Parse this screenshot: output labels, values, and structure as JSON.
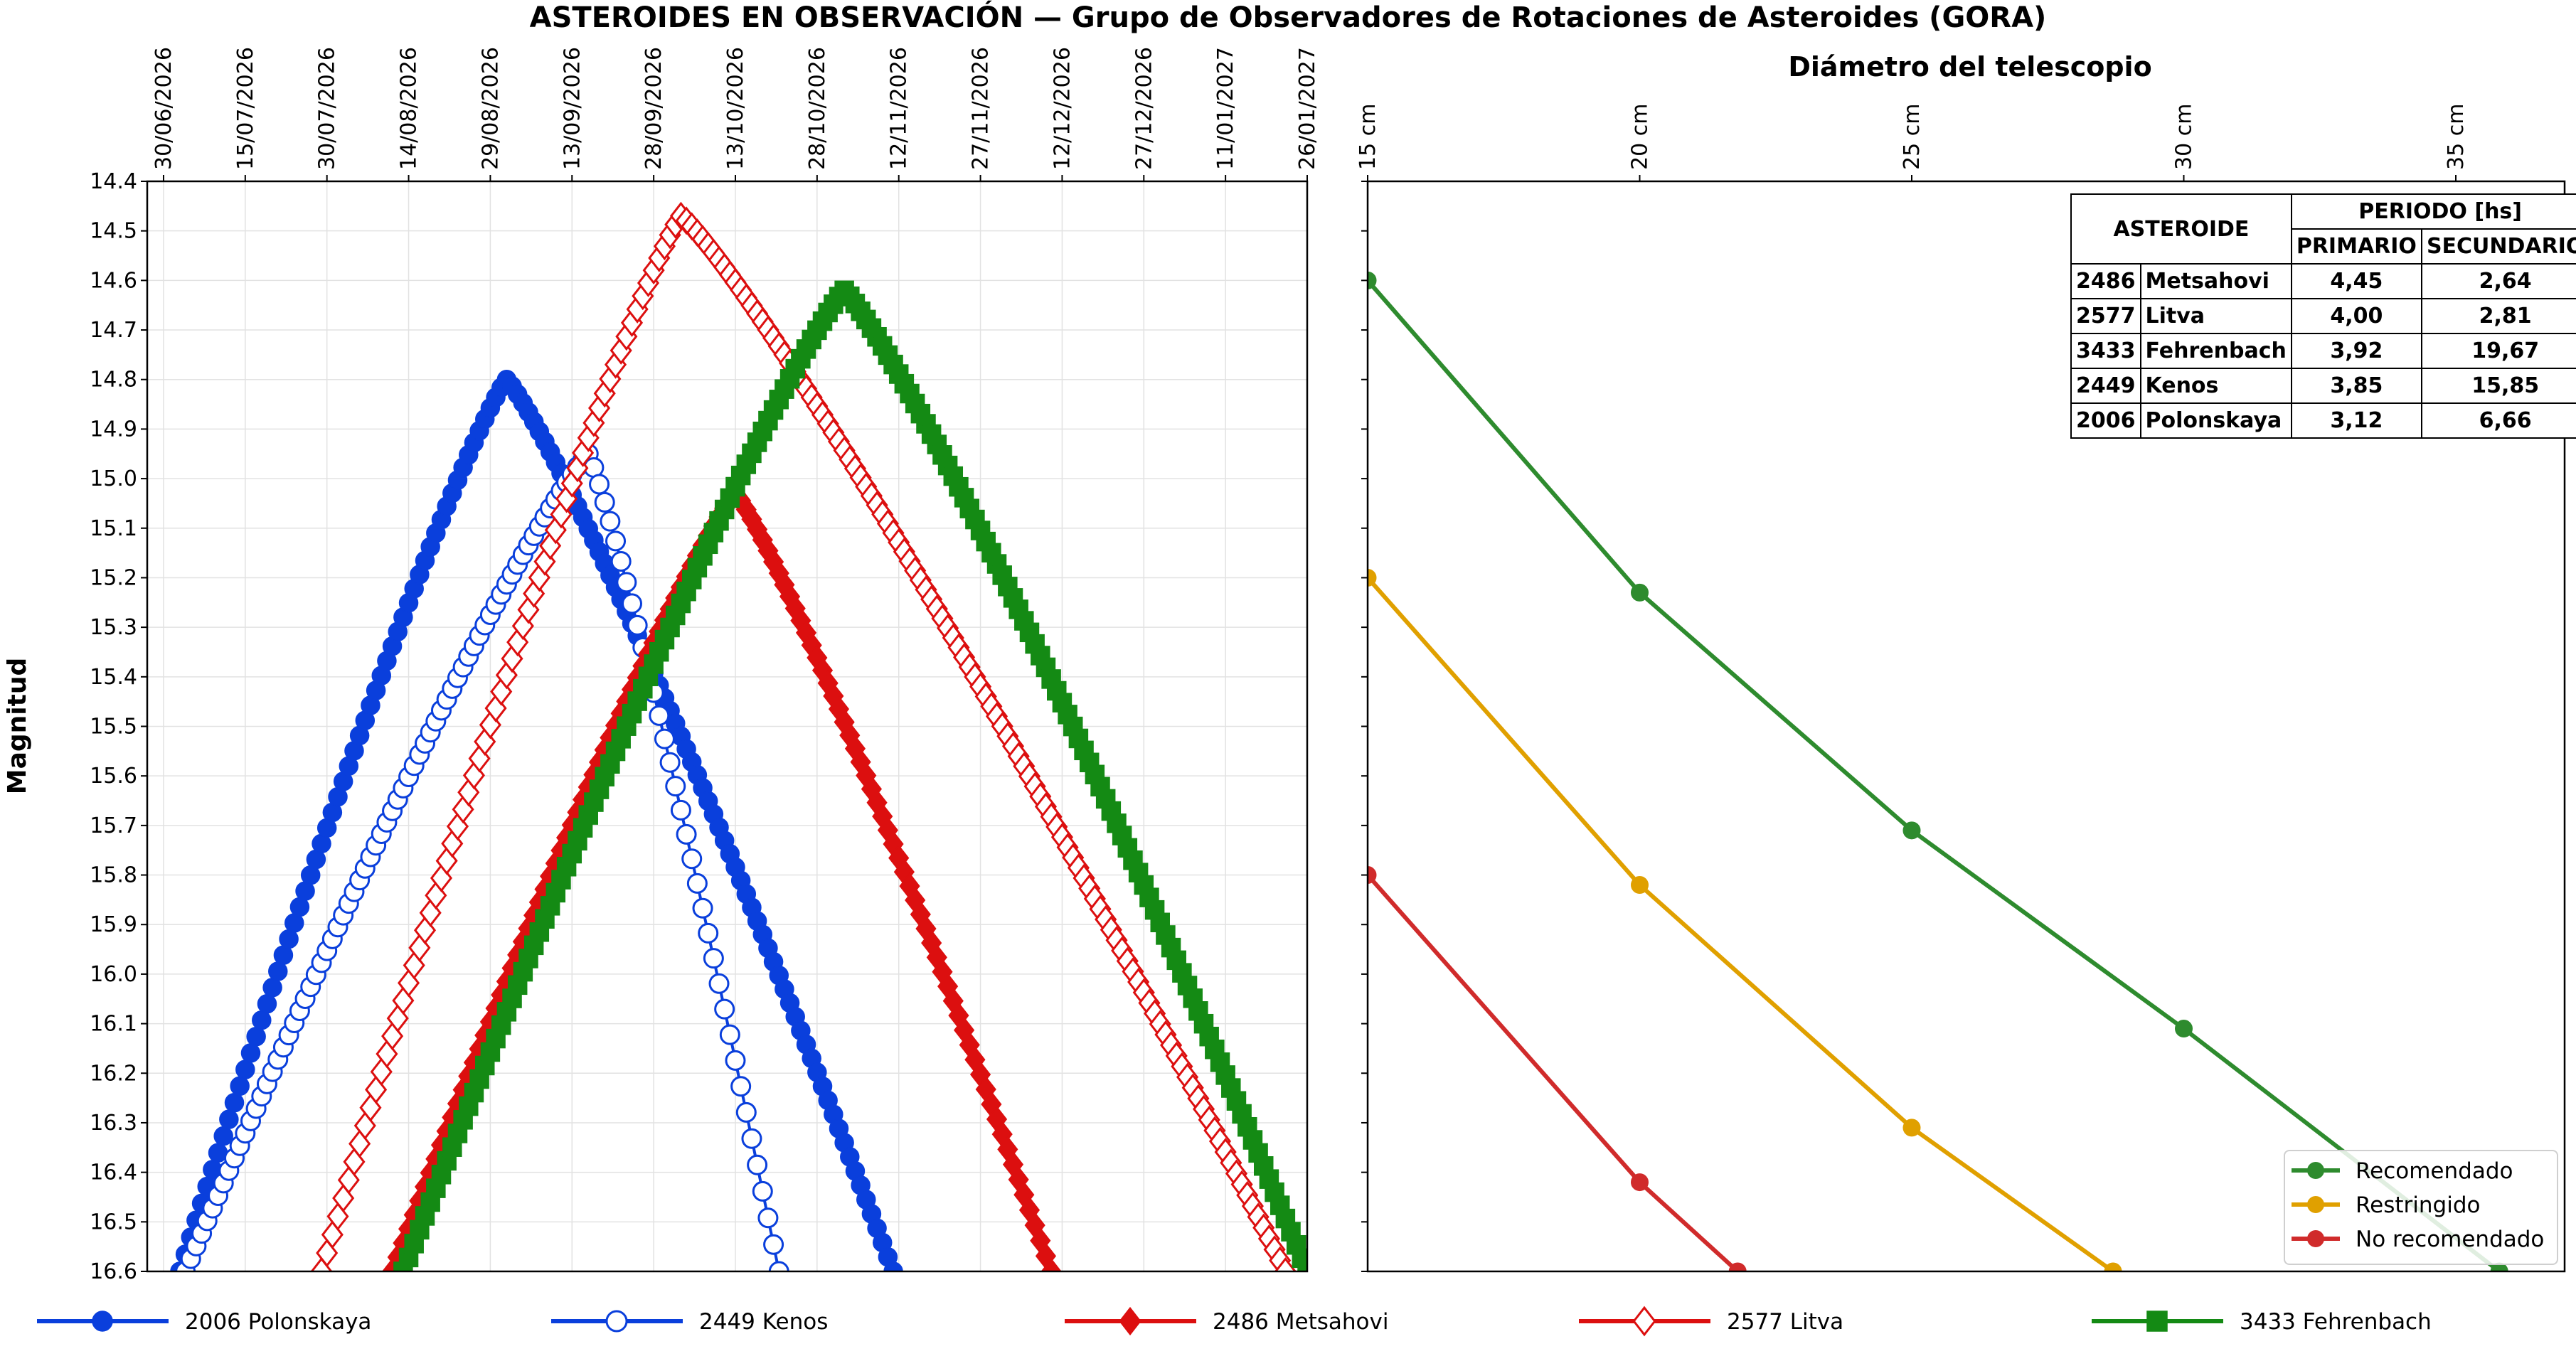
{
  "title": "ASTEROIDES EN OBSERVACIÓN — Grupo de Observadores de Rotaciones de Asteroides (GORA)",
  "colors": {
    "blue": "#0a3fdc",
    "red": "#dc0f0f",
    "green": "#148a14",
    "recomendado": "#2e8b2e",
    "restringido": "#e0a000",
    "no_recomendado": "#d02b2b"
  },
  "chart_data": [
    {
      "type": "line",
      "ylabel": "Magnitud",
      "x_ticks": [
        "30/06/2026",
        "15/07/2026",
        "30/07/2026",
        "14/08/2026",
        "29/08/2026",
        "13/09/2026",
        "28/09/2026",
        "13/10/2026",
        "28/10/2026",
        "12/11/2026",
        "27/11/2026",
        "12/12/2026",
        "27/12/2026",
        "11/01/2027",
        "26/01/2027"
      ],
      "xlim": [
        "2026-06-27",
        "2027-01-26"
      ],
      "ylim": [
        14.4,
        16.6
      ],
      "y_inverted": true,
      "y_ticks": [
        "14.4",
        "14.5",
        "14.6",
        "14.7",
        "14.8",
        "14.9",
        "15.0",
        "15.1",
        "15.2",
        "15.3",
        "15.4",
        "15.5",
        "15.6",
        "15.7",
        "15.8",
        "15.9",
        "16.0",
        "16.1",
        "16.2",
        "16.3",
        "16.4",
        "16.5",
        "16.6"
      ],
      "grid": true,
      "legend_position": "bottom",
      "series": [
        {
          "name": "2006 Polonskaya",
          "color": "#0a3fdc",
          "marker": "circle-filled",
          "start": "2026-07-03",
          "peak": "2026-09-01",
          "end": "2026-11-11",
          "peak_mag": 14.8,
          "edge_mag": 16.6
        },
        {
          "name": "2449 Kenos",
          "color": "#0a3fdc",
          "marker": "circle-open",
          "start": "2026-07-04",
          "peak": "2026-09-16",
          "end": "2026-10-21",
          "peak_mag": 14.95,
          "edge_mag": 16.6
        },
        {
          "name": "2486 Metsahovi",
          "color": "#dc0f0f",
          "marker": "diamond-filled",
          "start": "2026-08-11",
          "peak": "2026-10-13",
          "end": "2026-12-10",
          "peak_mag": 15.03,
          "edge_mag": 16.6
        },
        {
          "name": "2577 Litva",
          "color": "#dc0f0f",
          "marker": "diamond-open",
          "start": "2026-07-29",
          "peak": "2026-10-03",
          "end": "2027-01-22",
          "peak_mag": 14.47,
          "edge_mag": 16.6
        },
        {
          "name": "3433 Fehrenbach",
          "color": "#148a14",
          "marker": "square-filled",
          "start": "2026-08-13",
          "peak": "2026-11-02",
          "end": "2027-01-26",
          "peak_mag": 14.62,
          "edge_mag": 16.6
        }
      ]
    },
    {
      "type": "line",
      "xlabel": "Diámetro del telescopio",
      "x_ticks": [
        "15 cm",
        "20 cm",
        "25 cm",
        "30 cm",
        "35 cm"
      ],
      "xlim": [
        15,
        37
      ],
      "ylim": [
        14.4,
        16.6
      ],
      "y_inverted": true,
      "grid": false,
      "legend_position": "lower right",
      "series": [
        {
          "name": "Recomendado",
          "color": "#2e8b2e",
          "x": [
            15,
            20,
            25,
            30,
            35.8
          ],
          "y": [
            14.6,
            15.23,
            15.71,
            16.11,
            16.6
          ]
        },
        {
          "name": "Restringido",
          "color": "#e0a000",
          "x": [
            15,
            20,
            25,
            28.7
          ],
          "y": [
            15.2,
            15.82,
            16.31,
            16.6
          ]
        },
        {
          "name": "No recomendado",
          "color": "#d02b2b",
          "x": [
            15,
            20,
            21.8
          ],
          "y": [
            15.8,
            16.42,
            16.6
          ]
        }
      ]
    }
  ],
  "period_table": {
    "header_asteroid": "ASTEROIDE",
    "header_period": "PERIODO [hs]",
    "header_primary": "PRIMARIO",
    "header_secondary": "SECUNDARIO",
    "rows": [
      {
        "id": "2486",
        "name": "Metsahovi",
        "primary": "4,45",
        "secondary": "2,64"
      },
      {
        "id": "2577",
        "name": "Litva",
        "primary": "4,00",
        "secondary": "2,81"
      },
      {
        "id": "3433",
        "name": "Fehrenbach",
        "primary": "3,92",
        "secondary": "19,67"
      },
      {
        "id": "2449",
        "name": "Kenos",
        "primary": "3,85",
        "secondary": "15,85"
      },
      {
        "id": "2006",
        "name": "Polonskaya",
        "primary": "3,12",
        "secondary": "6,66"
      }
    ]
  }
}
